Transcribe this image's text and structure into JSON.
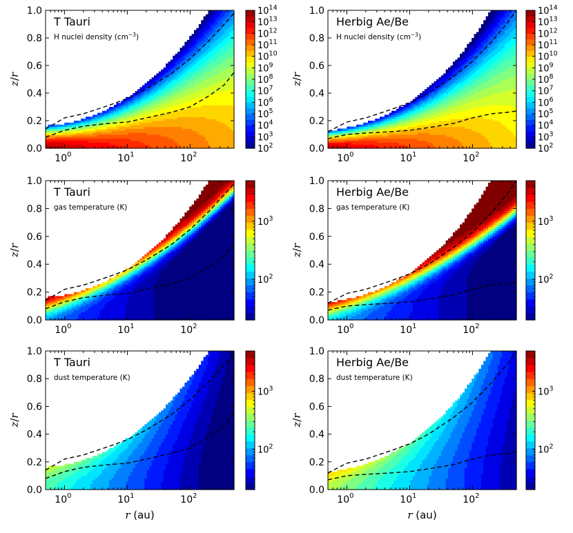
{
  "figure": {
    "xlabel_var": "r",
    "xlabel_unit": " (au)",
    "ylabel_main": "z",
    "ylabel_sep": "/",
    "ylabel_var": "r"
  },
  "chart_data": [
    {
      "type": "heatmap",
      "id": "tt-dens",
      "title": "T Tauri",
      "subtitle_base": "H nuclei density (cm",
      "subtitle_exp": "−3",
      "subtitle_end": ")",
      "field": "density",
      "star": "tt",
      "xscale": "log",
      "xlim": [
        0.5,
        500
      ],
      "ylim": [
        0,
        1
      ],
      "yticks": [
        "0.0",
        "0.2",
        "0.4",
        "0.6",
        "0.8",
        "1.0"
      ],
      "xticks": [
        {
          "base": "10",
          "exp": "0"
        },
        {
          "base": "10",
          "exp": "1"
        },
        {
          "base": "10",
          "exp": "2"
        }
      ],
      "colorbar": {
        "scale": "log",
        "range": [
          100,
          100000000000000
        ],
        "ticks": [
          {
            "base": "10",
            "exp": "14"
          },
          {
            "base": "10",
            "exp": "13"
          },
          {
            "base": "10",
            "exp": "12"
          },
          {
            "base": "10",
            "exp": "11"
          },
          {
            "base": "10",
            "exp": "10"
          },
          {
            "base": "10",
            "exp": "9"
          },
          {
            "base": "10",
            "exp": "8"
          },
          {
            "base": "10",
            "exp": "7"
          },
          {
            "base": "10",
            "exp": "6"
          },
          {
            "base": "10",
            "exp": "5"
          },
          {
            "base": "10",
            "exp": "4"
          },
          {
            "base": "10",
            "exp": "3"
          },
          {
            "base": "10",
            "exp": "2"
          }
        ]
      },
      "dashed_lines": [
        {
          "x": [
            0.5,
            1,
            2,
            5,
            10,
            20,
            50,
            100,
            200,
            350,
            500
          ],
          "y": [
            0.14,
            0.22,
            0.25,
            0.31,
            0.36,
            0.43,
            0.54,
            0.65,
            0.78,
            0.9,
            0.98
          ]
        },
        {
          "x": [
            0.5,
            1,
            2,
            5,
            10,
            20,
            50,
            100,
            200,
            350,
            500
          ],
          "y": [
            0.08,
            0.13,
            0.16,
            0.18,
            0.19,
            0.22,
            0.26,
            0.3,
            0.38,
            0.46,
            0.55
          ]
        }
      ]
    },
    {
      "type": "heatmap",
      "id": "hab-dens",
      "title": "Herbig Ae/Be",
      "subtitle_base": "H nuclei density (cm",
      "subtitle_exp": "−3",
      "subtitle_end": ")",
      "field": "density",
      "star": "hab",
      "xscale": "log",
      "xlim": [
        0.5,
        500
      ],
      "ylim": [
        0,
        1
      ],
      "yticks": [
        "0.0",
        "0.2",
        "0.4",
        "0.6",
        "0.8",
        "1.0"
      ],
      "xticks": [
        {
          "base": "10",
          "exp": "0"
        },
        {
          "base": "10",
          "exp": "1"
        },
        {
          "base": "10",
          "exp": "2"
        }
      ],
      "colorbar": {
        "scale": "log",
        "range": [
          100,
          100000000000000
        ],
        "ticks": [
          {
            "base": "10",
            "exp": "14"
          },
          {
            "base": "10",
            "exp": "13"
          },
          {
            "base": "10",
            "exp": "12"
          },
          {
            "base": "10",
            "exp": "11"
          },
          {
            "base": "10",
            "exp": "10"
          },
          {
            "base": "10",
            "exp": "9"
          },
          {
            "base": "10",
            "exp": "8"
          },
          {
            "base": "10",
            "exp": "7"
          },
          {
            "base": "10",
            "exp": "6"
          },
          {
            "base": "10",
            "exp": "5"
          },
          {
            "base": "10",
            "exp": "4"
          },
          {
            "base": "10",
            "exp": "3"
          },
          {
            "base": "10",
            "exp": "2"
          }
        ]
      },
      "dashed_lines": [
        {
          "x": [
            0.5,
            1,
            2,
            5,
            10,
            20,
            50,
            100,
            200,
            350,
            500
          ],
          "y": [
            0.12,
            0.19,
            0.22,
            0.28,
            0.33,
            0.4,
            0.52,
            0.63,
            0.77,
            0.9,
            1.0
          ]
        },
        {
          "x": [
            0.5,
            1,
            2,
            5,
            10,
            20,
            50,
            100,
            200,
            350,
            500
          ],
          "y": [
            0.07,
            0.1,
            0.11,
            0.12,
            0.13,
            0.15,
            0.18,
            0.22,
            0.25,
            0.26,
            0.27
          ]
        }
      ]
    },
    {
      "type": "heatmap",
      "id": "tt-gas",
      "title": "T Tauri",
      "subtitle": "gas temperature (K)",
      "field": "gastemp",
      "star": "tt",
      "xscale": "log",
      "xlim": [
        0.5,
        500
      ],
      "ylim": [
        0,
        1
      ],
      "yticks": [
        "0.0",
        "0.2",
        "0.4",
        "0.6",
        "0.8",
        "1.0"
      ],
      "xticks": [
        {
          "base": "10",
          "exp": "0"
        },
        {
          "base": "10",
          "exp": "1"
        },
        {
          "base": "10",
          "exp": "2"
        }
      ],
      "colorbar": {
        "scale": "log",
        "range": [
          20,
          5000
        ],
        "ticks": [
          {
            "base": "10",
            "exp": "3"
          },
          {
            "base": "10",
            "exp": "2"
          }
        ]
      },
      "dashed_lines": [
        {
          "x": [
            0.5,
            1,
            2,
            5,
            10,
            20,
            50,
            100,
            200,
            350,
            500
          ],
          "y": [
            0.14,
            0.22,
            0.25,
            0.31,
            0.36,
            0.43,
            0.54,
            0.65,
            0.78,
            0.9,
            0.98
          ]
        },
        {
          "x": [
            0.5,
            1,
            2,
            5,
            10,
            20,
            50,
            100,
            200,
            350,
            500
          ],
          "y": [
            0.08,
            0.13,
            0.16,
            0.18,
            0.19,
            0.22,
            0.26,
            0.3,
            0.38,
            0.46,
            0.55
          ]
        }
      ]
    },
    {
      "type": "heatmap",
      "id": "hab-gas",
      "title": "Herbig Ae/Be",
      "subtitle": "gas temperature (K)",
      "field": "gastemp",
      "star": "hab",
      "xscale": "log",
      "xlim": [
        0.5,
        500
      ],
      "ylim": [
        0,
        1
      ],
      "yticks": [
        "0.0",
        "0.2",
        "0.4",
        "0.6",
        "0.8",
        "1.0"
      ],
      "xticks": [
        {
          "base": "10",
          "exp": "0"
        },
        {
          "base": "10",
          "exp": "1"
        },
        {
          "base": "10",
          "exp": "2"
        }
      ],
      "colorbar": {
        "scale": "log",
        "range": [
          20,
          5000
        ],
        "ticks": [
          {
            "base": "10",
            "exp": "3"
          },
          {
            "base": "10",
            "exp": "2"
          }
        ]
      },
      "dashed_lines": [
        {
          "x": [
            0.5,
            1,
            2,
            5,
            10,
            20,
            50,
            100,
            200,
            350,
            500
          ],
          "y": [
            0.12,
            0.19,
            0.22,
            0.28,
            0.33,
            0.4,
            0.52,
            0.63,
            0.77,
            0.9,
            1.0
          ]
        },
        {
          "x": [
            0.5,
            1,
            2,
            5,
            10,
            20,
            50,
            100,
            200,
            350,
            500
          ],
          "y": [
            0.07,
            0.1,
            0.11,
            0.12,
            0.13,
            0.15,
            0.18,
            0.22,
            0.25,
            0.26,
            0.27
          ]
        }
      ]
    },
    {
      "type": "heatmap",
      "id": "tt-dust",
      "title": "T Tauri",
      "subtitle": "dust temperature (K)",
      "field": "dusttemp",
      "star": "tt",
      "xscale": "log",
      "xlim": [
        0.5,
        500
      ],
      "ylim": [
        0,
        1
      ],
      "yticks": [
        "0.0",
        "0.2",
        "0.4",
        "0.6",
        "0.8",
        "1.0"
      ],
      "xticks": [
        {
          "base": "10",
          "exp": "0"
        },
        {
          "base": "10",
          "exp": "1"
        },
        {
          "base": "10",
          "exp": "2"
        }
      ],
      "colorbar": {
        "scale": "log",
        "range": [
          20,
          5000
        ],
        "ticks": [
          {
            "base": "10",
            "exp": "3"
          },
          {
            "base": "10",
            "exp": "2"
          }
        ]
      },
      "dashed_lines": [
        {
          "x": [
            0.5,
            1,
            2,
            5,
            10,
            20,
            50,
            100,
            200,
            350,
            500
          ],
          "y": [
            0.14,
            0.22,
            0.25,
            0.31,
            0.36,
            0.43,
            0.54,
            0.65,
            0.78,
            0.9,
            0.98
          ]
        },
        {
          "x": [
            0.5,
            1,
            2,
            5,
            10,
            20,
            50,
            100,
            200,
            350,
            500
          ],
          "y": [
            0.08,
            0.13,
            0.16,
            0.18,
            0.19,
            0.22,
            0.26,
            0.3,
            0.38,
            0.46,
            0.55
          ]
        }
      ]
    },
    {
      "type": "heatmap",
      "id": "hab-dust",
      "title": "Herbig Ae/Be",
      "subtitle": "dust temperature (K)",
      "field": "dusttemp",
      "star": "hab",
      "xscale": "log",
      "xlim": [
        0.5,
        500
      ],
      "ylim": [
        0,
        1
      ],
      "yticks": [
        "0.0",
        "0.2",
        "0.4",
        "0.6",
        "0.8",
        "1.0"
      ],
      "xticks": [
        {
          "base": "10",
          "exp": "0"
        },
        {
          "base": "10",
          "exp": "1"
        },
        {
          "base": "10",
          "exp": "2"
        }
      ],
      "colorbar": {
        "scale": "log",
        "range": [
          20,
          5000
        ],
        "ticks": [
          {
            "base": "10",
            "exp": "3"
          },
          {
            "base": "10",
            "exp": "2"
          }
        ]
      },
      "dashed_lines": [
        {
          "x": [
            0.5,
            1,
            2,
            5,
            10,
            20,
            50,
            100,
            200,
            350,
            500
          ],
          "y": [
            0.12,
            0.19,
            0.22,
            0.28,
            0.33,
            0.4,
            0.52,
            0.63,
            0.77,
            0.9,
            1.0
          ]
        },
        {
          "x": [
            0.5,
            1,
            2,
            5,
            10,
            20,
            50,
            100,
            200,
            350,
            500
          ],
          "y": [
            0.07,
            0.1,
            0.11,
            0.12,
            0.13,
            0.15,
            0.18,
            0.22,
            0.25,
            0.26,
            0.27
          ]
        }
      ]
    }
  ]
}
